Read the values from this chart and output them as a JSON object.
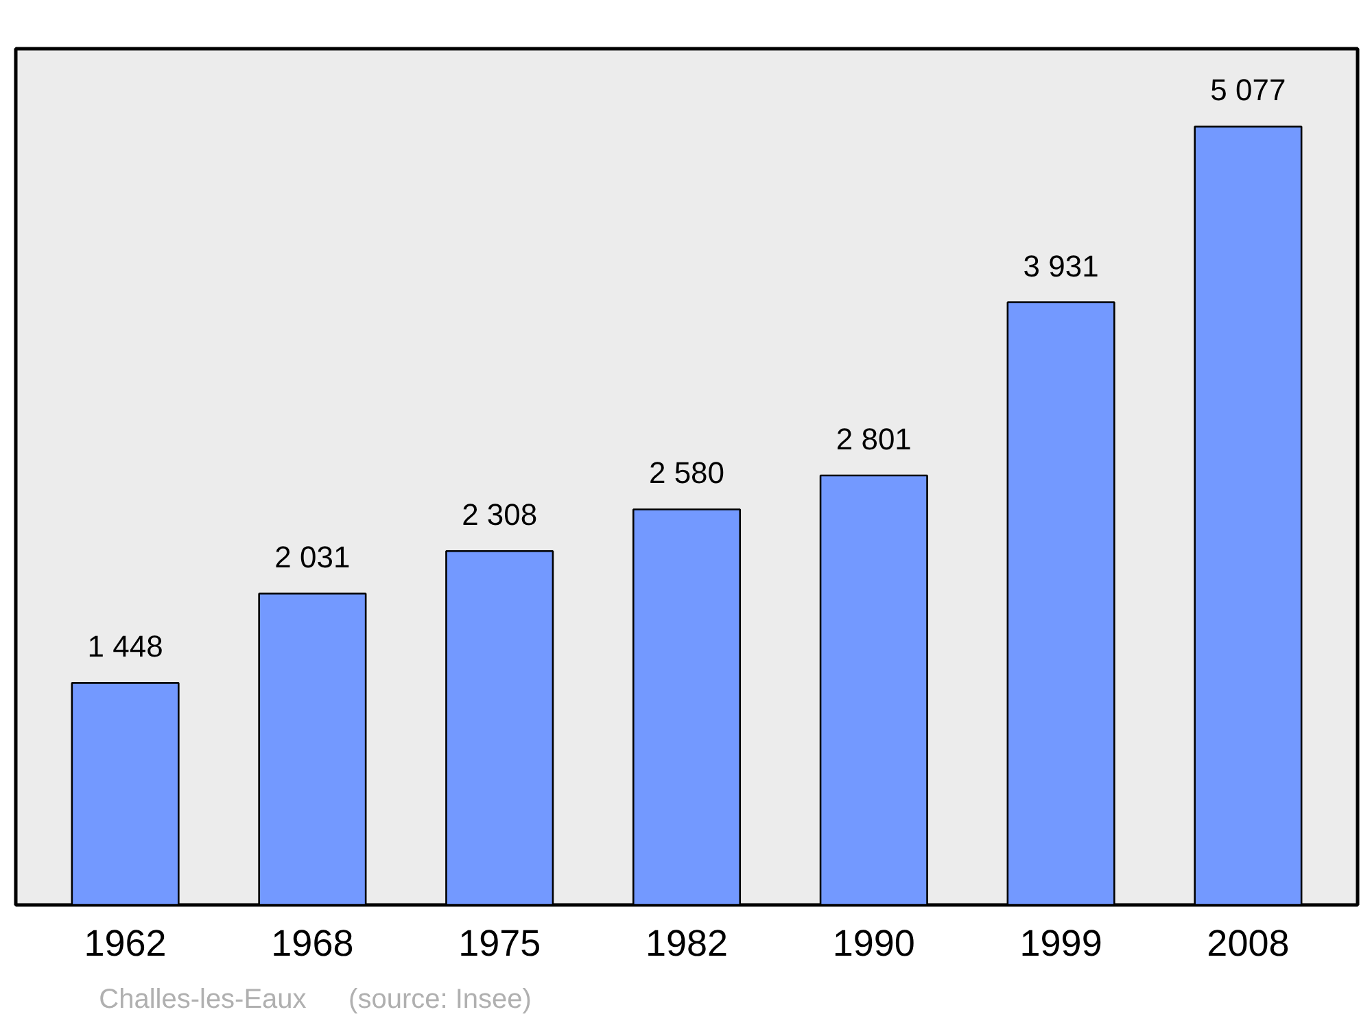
{
  "chart_data": {
    "type": "bar",
    "categories": [
      "1962",
      "1968",
      "1975",
      "1982",
      "1990",
      "1999",
      "2008"
    ],
    "values": [
      1448,
      2031,
      2308,
      2580,
      2801,
      3931,
      5077
    ],
    "value_labels": [
      "1 448",
      "2 031",
      "2 308",
      "2 580",
      "2 801",
      "3 931",
      "5 077"
    ],
    "color": "#7399ff",
    "grid": false,
    "annotations": [
      "Challes-les-Eaux",
      "(source: Insee)"
    ]
  }
}
